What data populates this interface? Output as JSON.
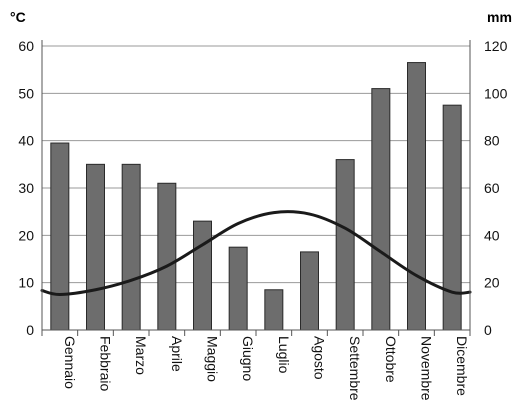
{
  "chart_data": {
    "type": "bar",
    "categories": [
      "Gennaio",
      "Febbraio",
      "Marzo",
      "Aprile",
      "Maggio",
      "Giugno",
      "Luglio",
      "Agosto",
      "Settembre",
      "Ottobre",
      "Novembre",
      "Dicembre"
    ],
    "left_axis": {
      "unit": "°C",
      "ylim": [
        0,
        60
      ],
      "ticks": [
        "0",
        "10",
        "20",
        "30",
        "40",
        "50",
        "60"
      ]
    },
    "right_axis": {
      "unit": "mm",
      "ylim": [
        0,
        120
      ],
      "ticks": [
        "0",
        "20",
        "40",
        "60",
        "80",
        "100",
        "120"
      ]
    },
    "series": [
      {
        "type": "bar",
        "axis": "right",
        "color": "#6d6d6d",
        "values": [
          79,
          70,
          70,
          62,
          46,
          35,
          17,
          33,
          72,
          102,
          113,
          95
        ]
      },
      {
        "type": "line",
        "axis": "left",
        "color": "#1a1a1a",
        "values": [
          7.5,
          8.5,
          10.5,
          13.5,
          18,
          22.5,
          24.8,
          24.5,
          21.5,
          16.5,
          11.5,
          8.0
        ]
      }
    ],
    "grid": true
  }
}
